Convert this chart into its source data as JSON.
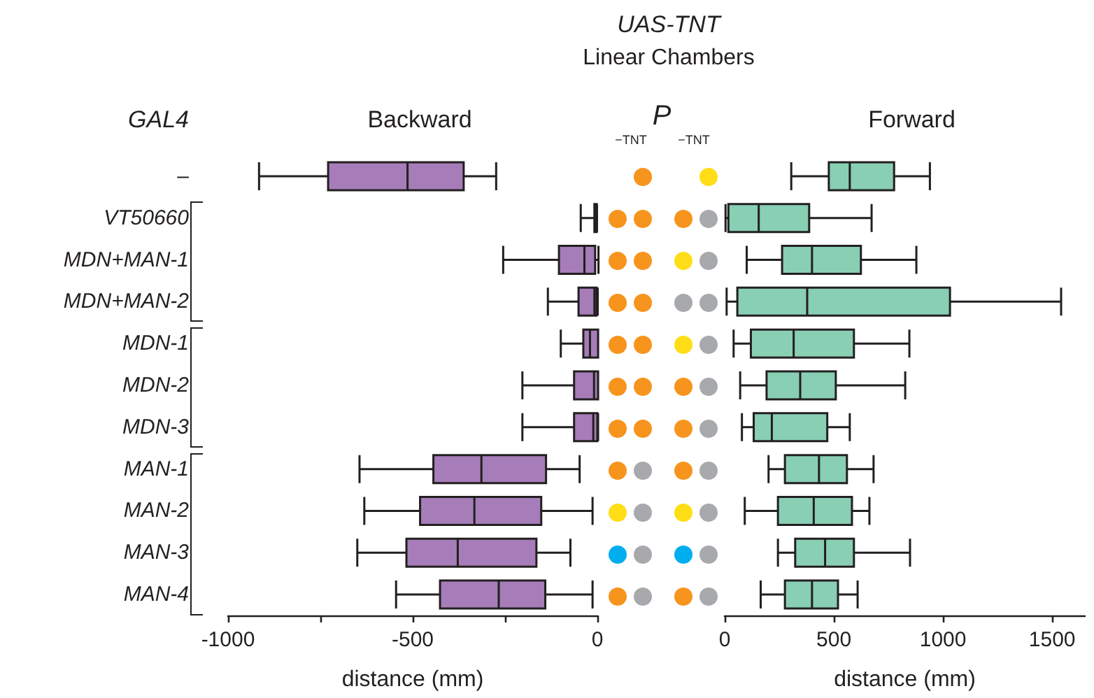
{
  "chart_data": [
    {
      "type": "box",
      "title": "Backward",
      "xlabel": "distance (mm)",
      "ylabel": "GAL4",
      "orientation": "horizontal",
      "categories": [
        "–",
        "VT50660",
        "MDN+MAN-1",
        "MDN+MAN-2",
        "MDN-1",
        "MDN-2",
        "MDN-3",
        "MAN-1",
        "MAN-2",
        "MAN-3",
        "MAN-4"
      ],
      "xlim": [
        -1000,
        0
      ],
      "xticks": [
        -1000,
        {
          "value": -750,
          "label": null
        },
        -500,
        {
          "value": -250,
          "label": null
        },
        0
      ],
      "series": [
        {
          "color": "#a67db8",
          "boxes": [
            {
              "low": -916,
              "q1": -729,
              "median": -514,
              "q3": -362,
              "high": -274
            },
            {
              "low": -45,
              "q1": -8,
              "median": -5,
              "q3": -2,
              "high": -1
            },
            {
              "low": -255,
              "q1": -104,
              "median": -35,
              "q3": -6,
              "high": 3
            },
            {
              "low": -134,
              "q1": -51,
              "median": -8,
              "q3": -2,
              "high": 1
            },
            {
              "low": -99,
              "q1": -38,
              "median": -20,
              "q3": 2,
              "high": 2
            },
            {
              "low": -203,
              "q1": -63,
              "median": -9,
              "q3": 2,
              "high": 2
            },
            {
              "low": -203,
              "q1": -63,
              "median": -11,
              "q3": 0,
              "high": 2
            },
            {
              "low": -644,
              "q1": -444,
              "median": -314,
              "q3": -139,
              "high": -48
            },
            {
              "low": -631,
              "q1": -480,
              "median": -333,
              "q3": -152,
              "high": -13
            },
            {
              "low": -650,
              "q1": -517,
              "median": -378,
              "q3": -165,
              "high": -73
            },
            {
              "low": -545,
              "q1": -426,
              "median": -267,
              "q3": -141,
              "high": -13
            }
          ]
        }
      ]
    },
    {
      "type": "other",
      "title": "UAS-TNT",
      "subtitle": "Linear Chambers",
      "annotations": [
        "P",
        "−TNT",
        "−TNT"
      ],
      "colors": [
        null,
        "#f7941d",
        null,
        "#ffde17",
        "#f7941d",
        "#f7941d",
        "#f7941d",
        "#a7a9ac",
        "#f7941d",
        "#f7941d",
        "#ffde17",
        "#a7a9ac",
        "#f7941d",
        "#f7941d",
        "#a7a9ac",
        "#a7a9ac",
        "#f7941d",
        "#f7941d",
        "#ffde17",
        "#a7a9ac",
        "#f7941d",
        "#f7941d",
        "#f7941d",
        "#a7a9ac",
        "#f7941d",
        "#f7941d",
        "#f7941d",
        "#a7a9ac",
        "#f7941d",
        "#a7a9ac",
        "#f7941d",
        "#a7a9ac",
        "#ffde17",
        "#a7a9ac",
        "#ffde17",
        "#a7a9ac",
        "#00aeef",
        "#a7a9ac",
        "#00aeef",
        "#a7a9ac",
        "#f7941d",
        "#a7a9ac",
        "#f7941d",
        "#a7a9ac"
      ]
    },
    {
      "type": "box",
      "title": "Forward",
      "xlabel": "distance (mm)",
      "orientation": "horizontal",
      "categories": [
        null,
        null,
        null,
        null,
        null,
        null,
        null,
        null,
        null,
        null,
        null
      ],
      "tick_labels": "x",
      "xlim": [
        0,
        1650
      ],
      "xticks": [
        0,
        500,
        1000,
        1500
      ],
      "series": [
        {
          "color": "#88cfb4",
          "boxes": [
            {
              "low": 305,
              "q1": 477,
              "median": 573,
              "q3": 776,
              "high": 940
            },
            {
              "low": 4,
              "q1": 17,
              "median": 156,
              "q3": 387,
              "high": 673
            },
            {
              "low": 101,
              "q1": 263,
              "median": 400,
              "q3": 624,
              "high": 878
            },
            {
              "low": 9,
              "q1": 58,
              "median": 378,
              "q3": 1032,
              "high": 1541
            },
            {
              "low": 41,
              "q1": 120,
              "median": 316,
              "q3": 592,
              "high": 846
            },
            {
              "low": 71,
              "q1": 192,
              "median": 346,
              "q3": 509,
              "high": 827
            },
            {
              "low": 79,
              "q1": 133,
              "median": 216,
              "q3": 470,
              "high": 573
            },
            {
              "low": 201,
              "q1": 276,
              "median": 432,
              "q3": 560,
              "high": 682
            },
            {
              "low": 92,
              "q1": 244,
              "median": 408,
              "q3": 583,
              "high": 663
            },
            {
              "low": 244,
              "q1": 323,
              "median": 460,
              "q3": 592,
              "high": 849
            },
            {
              "low": 165,
              "q1": 276,
              "median": 400,
              "q3": 519,
              "high": 609
            }
          ]
        }
      ]
    }
  ]
}
